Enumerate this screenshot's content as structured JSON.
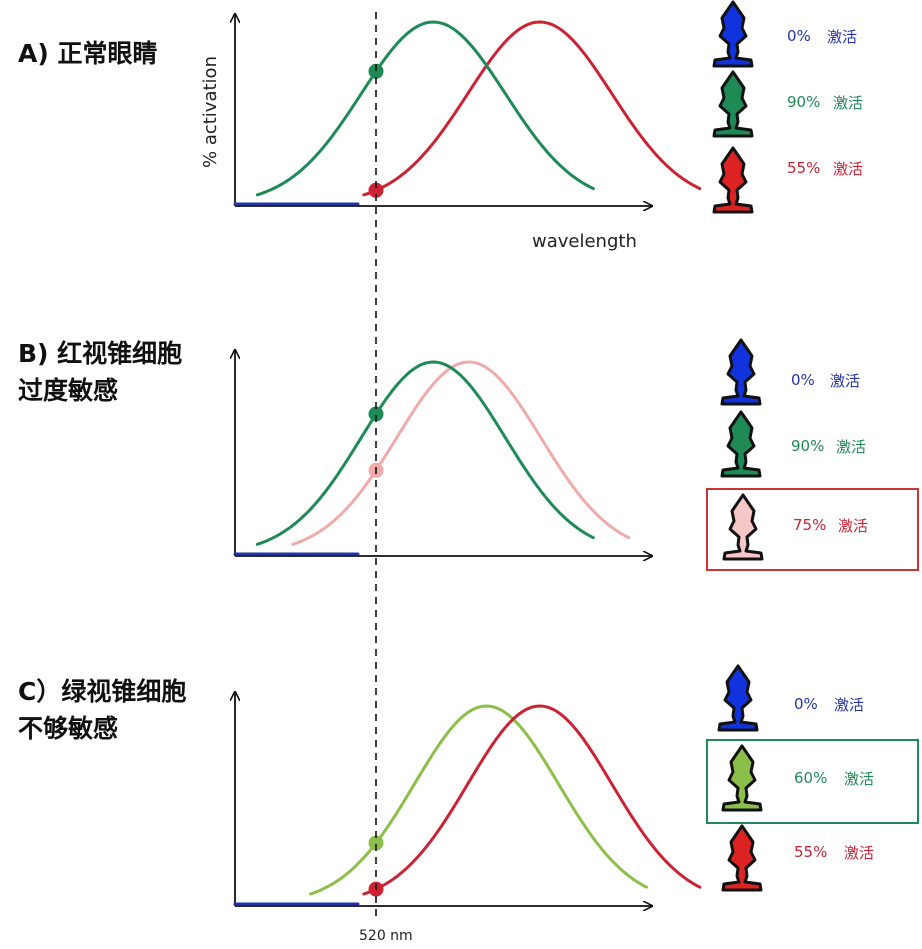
{
  "x_axis_label": "wavelength",
  "y_axis_label": "% activation",
  "marker_label": "520 nm",
  "panels": [
    {
      "title_lines": [
        "A) 正常眼睛"
      ],
      "curves": [
        {
          "cone": "blue",
          "color": "#2233aa",
          "peak": 445,
          "activation": "0%"
        },
        {
          "cone": "green",
          "color": "#1e8a55",
          "peak": 535,
          "activation": "90%"
        },
        {
          "cone": "red",
          "color": "#cc2233",
          "peak": 565,
          "activation": "55%"
        }
      ],
      "cells": [
        {
          "percent": "0%",
          "word": "激活",
          "color": "#2233aa",
          "fill": "#1133dd",
          "highlight": false
        },
        {
          "percent": "90%",
          "word": "激活",
          "color": "#1e8a55",
          "fill": "#1e8a55",
          "highlight": false
        },
        {
          "percent": "55%",
          "word": "激活",
          "color": "#cc2233",
          "fill": "#dd2222",
          "highlight": false
        }
      ]
    },
    {
      "title_lines": [
        "B) 红视锥细胞",
        "过度敏感"
      ],
      "curves": [
        {
          "cone": "blue",
          "color": "#2233aa",
          "peak": 445,
          "activation": "0%"
        },
        {
          "cone": "green",
          "color": "#1e8a55",
          "peak": 535,
          "activation": "90%"
        },
        {
          "cone": "red",
          "color": "#f0aaaa",
          "peak": 545,
          "activation": "75%"
        }
      ],
      "cells": [
        {
          "percent": "0%",
          "word": "激活",
          "color": "#2233aa",
          "fill": "#1133dd",
          "highlight": false
        },
        {
          "percent": "90%",
          "word": "激活",
          "color": "#1e8a55",
          "fill": "#1e8a55",
          "highlight": false
        },
        {
          "percent": "75%",
          "word": "激活",
          "color": "#cc2233",
          "fill": "#f7c6c6",
          "highlight": true,
          "highlight_color": "#cc3333"
        }
      ]
    },
    {
      "title_lines": [
        "C）绿视锥细胞",
        "不够敏感"
      ],
      "curves": [
        {
          "cone": "blue",
          "color": "#2233aa",
          "peak": 445,
          "activation": "0%"
        },
        {
          "cone": "green",
          "color": "#8cbf4a",
          "peak": 550,
          "activation": "60%"
        },
        {
          "cone": "red",
          "color": "#cc2233",
          "peak": 565,
          "activation": "55%"
        }
      ],
      "cells": [
        {
          "percent": "0%",
          "word": "激活",
          "color": "#2233aa",
          "fill": "#1133dd",
          "highlight": false
        },
        {
          "percent": "60%",
          "word": "激活",
          "color": "#1e8a55",
          "fill": "#8cbf4a",
          "highlight": true,
          "highlight_color": "#1e8a55"
        },
        {
          "percent": "55%",
          "word": "激活",
          "color": "#cc2233",
          "fill": "#dd2222",
          "highlight": false
        }
      ]
    }
  ]
}
